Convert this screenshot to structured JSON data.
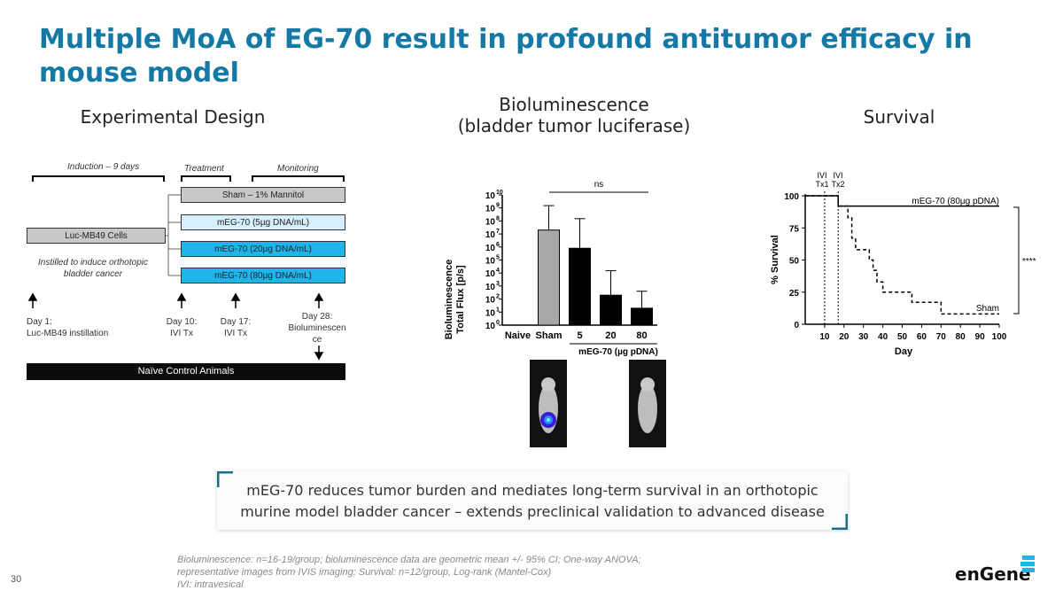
{
  "title": "Multiple MoA of EG-70 result in profound antitumor efficacy in mouse model",
  "headers": {
    "design": "Experimental Design",
    "biolum_line1": "Bioluminescence",
    "biolum_line2": "(bladder tumor luciferase)",
    "survival": "Survival"
  },
  "design": {
    "phases": [
      "Induction – 9 days",
      "Treatment",
      "Monitoring"
    ],
    "cells_box": "Luc-MB49 Cells",
    "instilled": "Instilled to induce orthotopic bladder cancer",
    "arms": [
      "Sham – 1% Mannitol",
      "mEG-70 (5µg DNA/mL)",
      "mEG-70 (20µg DNA/mL)",
      "mEG-70 (80µg DNA/mL)"
    ],
    "arm_colors": [
      "#c8c8c8",
      "#d6f0fb",
      "#1fb5ea",
      "#1fb5ea"
    ],
    "day1": "Day 1:\nLuc-MB49 instillation",
    "day10": "Day 10:\nIVI Tx",
    "day17": "Day 17:\nIVI Tx",
    "day28": "Day 28:\nBioluminescen\nce",
    "naive_bar": "Naïve Control Animals"
  },
  "biolum_chart": {
    "type": "bar",
    "ylabel_line1": "Bioluminescence",
    "ylabel_line2": "Total Flux [p/s]",
    "y_ticks": [
      "10",
      "10",
      "10",
      "10",
      "10",
      "10",
      "10",
      "10",
      "10",
      "10",
      "10"
    ],
    "y_tick_exps": [
      "0",
      "1",
      "2",
      "3",
      "4",
      "5",
      "6",
      "7",
      "8",
      "9",
      "10"
    ],
    "categories": [
      "Naive",
      "Sham",
      "5",
      "20",
      "80"
    ],
    "sig_label": "ns",
    "group_label": "mEG-70 (µg pDNA)"
  },
  "chart_data": [
    {
      "type": "bar",
      "title": "Bioluminescence (bladder tumor luciferase)",
      "ylabel": "Bioluminescence Total Flux [p/s]",
      "yscale": "log10",
      "ylim": [
        1,
        10000000000
      ],
      "categories": [
        "Naive",
        "Sham",
        "5",
        "20",
        "80"
      ],
      "values": [
        1,
        20000000,
        800000,
        200,
        20
      ],
      "error_upper": [
        1,
        1500000000,
        150000000,
        15000,
        400
      ],
      "colors": [
        "#ffffff",
        "#a8a8a8",
        "#000000",
        "#000000",
        "#000000"
      ],
      "annotations": [
        "ns"
      ]
    },
    {
      "type": "line",
      "step": true,
      "xlabel": "Day",
      "ylabel": "% Survival",
      "xlim": [
        0,
        100
      ],
      "ylim": [
        0,
        100
      ],
      "x_ticks": [
        10,
        20,
        30,
        40,
        50,
        60,
        70,
        80,
        90,
        100
      ],
      "y_ticks": [
        0,
        25,
        50,
        75,
        100
      ],
      "series": [
        {
          "name": "mEG-70 (80µg pDNA)",
          "x": [
            0,
            17,
            17,
            100
          ],
          "y": [
            100,
            100,
            92,
            92
          ]
        },
        {
          "name": "Sham",
          "x": [
            0,
            17,
            17,
            22,
            22,
            24,
            24,
            26,
            26,
            33,
            33,
            35,
            35,
            37,
            37,
            40,
            40,
            55,
            55,
            70,
            70,
            100
          ],
          "y": [
            100,
            100,
            92,
            92,
            83,
            83,
            67,
            67,
            58,
            58,
            50,
            50,
            42,
            42,
            33,
            33,
            25,
            25,
            17,
            17,
            8,
            8
          ]
        }
      ],
      "annotations": [
        "****",
        "IVI Tx1",
        "IVI Tx2"
      ]
    }
  ],
  "survival_chart": {
    "ylabel": "% Survival",
    "xlabel": "Day",
    "y_ticks": [
      "0",
      "25",
      "50",
      "75",
      "100"
    ],
    "x_ticks": [
      "10",
      "20",
      "30",
      "40",
      "50",
      "60",
      "70",
      "80",
      "90",
      "100"
    ],
    "tx1": "IVI\nTx1",
    "tx2": "IVI\nTx2",
    "series1_label": "mEG-70 (80µg pDNA)",
    "series2_label": "Sham",
    "sig": "****"
  },
  "takeaway": {
    "line1": "mEG-70 reduces tumor burden and mediates long-term survival in an orthotopic",
    "line2": "murine model bladder cancer – extends preclinical validation to advanced disease"
  },
  "footnote": "Bioluminescence: n=16-19/group; bioluminescence data are geometric mean +/- 95% CI; One-way ANOVA; representative images from IVIS imaging; Survival: n=12/group, Log-rank (Mantel-Cox)\nIVI: intravesical",
  "page_number": "30",
  "logo_text": "enGene",
  "colors": {
    "accent": "#1479A5",
    "bright_blue": "#1fb5ea",
    "takeaway_corner": "#1a6f8c"
  }
}
